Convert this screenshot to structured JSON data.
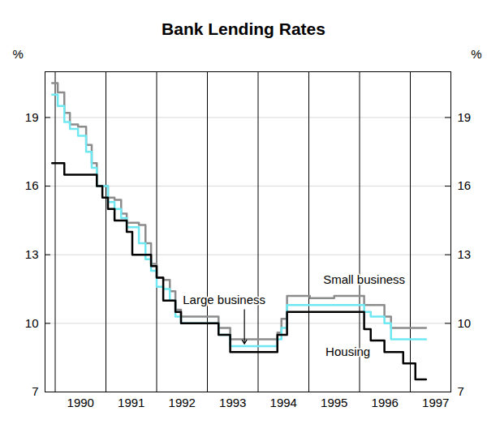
{
  "chart_data": {
    "type": "line",
    "title": "Bank Lending Rates",
    "ylabel": "%",
    "line_style": "step",
    "grid": true,
    "x": [
      1989.94,
      1990.05,
      1990.18,
      1990.29,
      1990.45,
      1990.61,
      1990.72,
      1990.82,
      1990.93,
      1991.04,
      1991.17,
      1991.3,
      1991.41,
      1991.52,
      1991.65,
      1991.78,
      1991.89,
      1992.0,
      1992.13,
      1992.26,
      1992.37,
      1992.48,
      1992.77,
      1993.13,
      1993.22,
      1993.33,
      1993.45,
      1993.73,
      1994.29,
      1994.38,
      1994.46,
      1994.57,
      1995.02,
      1995.5,
      1995.98,
      1996.09,
      1996.22,
      1996.38,
      1996.49,
      1996.62,
      1996.86,
      1997.1,
      1997.31
    ],
    "series": [
      {
        "name": "Small business",
        "color": "#8c8c8c",
        "values": [
          20.5,
          20.1,
          19.2,
          18.7,
          18.6,
          17.8,
          17.0,
          16.0,
          16.0,
          15.5,
          15.4,
          14.8,
          14.4,
          14.4,
          14.3,
          13.5,
          12.6,
          12.0,
          11.9,
          11.4,
          10.6,
          10.3,
          10.3,
          10.3,
          9.8,
          9.8,
          9.3,
          9.3,
          9.3,
          9.6,
          10.2,
          11.2,
          11.1,
          11.2,
          11.2,
          10.8,
          10.8,
          10.8,
          10.3,
          9.8,
          9.8,
          9.8,
          9.8
        ]
      },
      {
        "name": "Large business",
        "color": "#6fe8f2",
        "values": [
          20.0,
          19.5,
          18.8,
          18.5,
          18.2,
          17.5,
          16.8,
          16.0,
          16.0,
          15.3,
          15.0,
          14.6,
          14.2,
          14.2,
          13.5,
          12.8,
          12.3,
          11.6,
          11.5,
          11.0,
          10.3,
          10.0,
          10.0,
          10.0,
          9.5,
          9.5,
          9.0,
          9.0,
          9.0,
          9.3,
          9.8,
          10.8,
          10.8,
          10.8,
          10.8,
          10.5,
          10.3,
          10.3,
          10.0,
          9.3,
          9.3,
          9.3,
          9.3
        ]
      },
      {
        "name": "Housing",
        "color": "#000000",
        "values": [
          17.0,
          17.0,
          16.5,
          16.5,
          16.5,
          16.5,
          16.5,
          16.0,
          15.5,
          15.0,
          14.5,
          14.5,
          14.0,
          13.0,
          13.0,
          13.0,
          12.5,
          12.0,
          11.0,
          11.0,
          10.5,
          10.0,
          10.0,
          10.0,
          9.5,
          9.5,
          8.75,
          8.75,
          8.75,
          9.5,
          9.5,
          10.5,
          10.5,
          10.5,
          10.5,
          9.75,
          9.25,
          9.25,
          8.75,
          8.75,
          8.25,
          7.55,
          7.55
        ]
      }
    ],
    "xlim": [
      1989.8,
      1997.8
    ],
    "xticks": [
      {
        "value": 1990.5,
        "label": "1990"
      },
      {
        "value": 1991.5,
        "label": "1991"
      },
      {
        "value": 1992.5,
        "label": "1992"
      },
      {
        "value": 1993.5,
        "label": "1993"
      },
      {
        "value": 1994.5,
        "label": "1994"
      },
      {
        "value": 1995.5,
        "label": "1995"
      },
      {
        "value": 1996.5,
        "label": "1996"
      },
      {
        "value": 1997.5,
        "label": "1997"
      }
    ],
    "ylim": [
      7,
      21
    ],
    "yticks": [
      7,
      10,
      13,
      16,
      19
    ]
  }
}
